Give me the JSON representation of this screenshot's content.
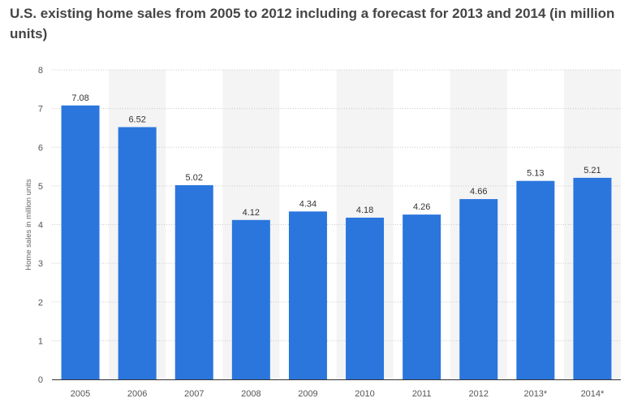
{
  "chart_data": {
    "type": "bar",
    "title": "U.S. existing home sales from 2005 to 2012 including a forecast for 2013 and 2014 (in million units)",
    "xlabel": "",
    "ylabel": "Home sales in million units",
    "categories": [
      "2005",
      "2006",
      "2007",
      "2008",
      "2009",
      "2010",
      "2011",
      "2012",
      "2013*",
      "2014*"
    ],
    "values": [
      7.08,
      6.52,
      5.02,
      4.12,
      4.34,
      4.18,
      4.26,
      4.66,
      5.13,
      5.21
    ],
    "value_labels": [
      "7.08",
      "6.52",
      "5.02",
      "4.12",
      "4.34",
      "4.18",
      "4.26",
      "4.66",
      "5.13",
      "5.21"
    ],
    "ylim": [
      0,
      8
    ],
    "yticks": [
      "0",
      "1",
      "2",
      "3",
      "4",
      "5",
      "6",
      "7",
      "8"
    ],
    "grid": true,
    "colors": {
      "bar": "#2a76dd",
      "band": "#f4f4f4",
      "grid": "#c8c8c8",
      "baseline": "#333333"
    }
  }
}
